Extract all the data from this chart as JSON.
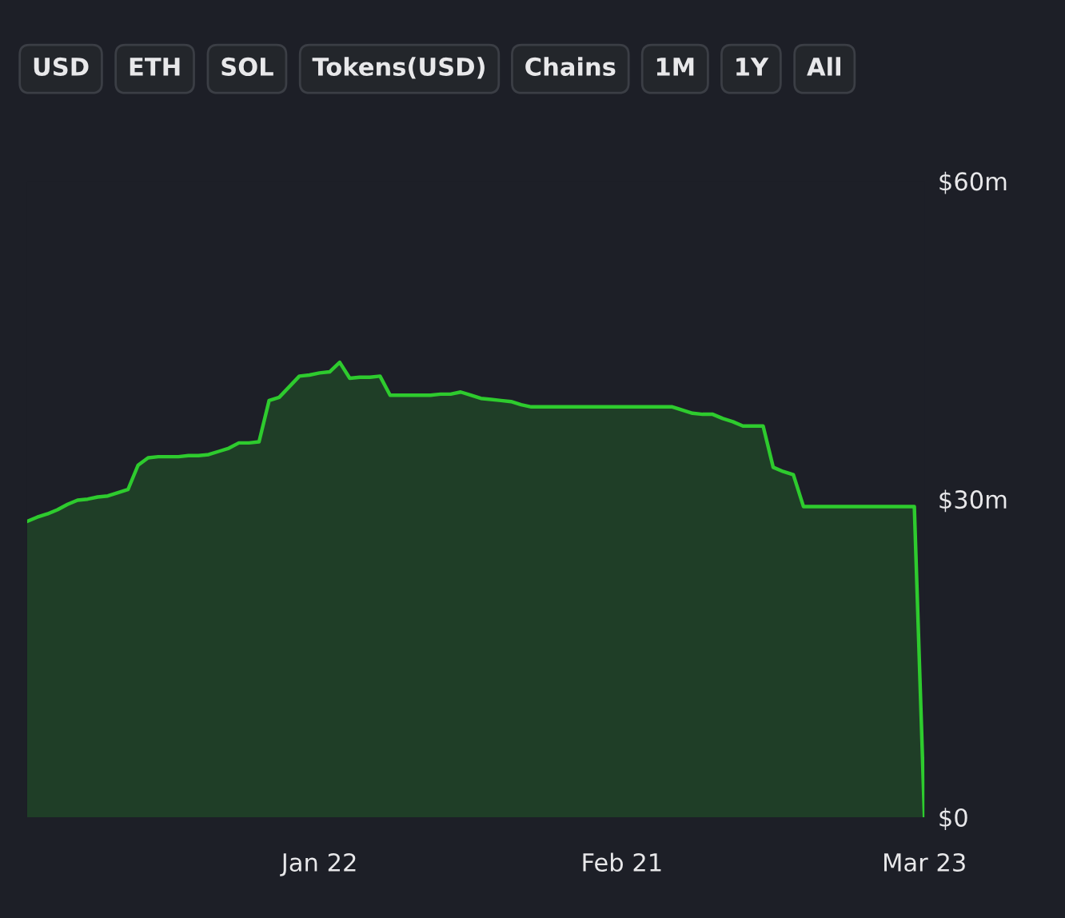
{
  "chart_data": {
    "type": "area",
    "categories": [
      null,
      null,
      null,
      null,
      null,
      null,
      null,
      null,
      null,
      null,
      null,
      null,
      null,
      null,
      null,
      null,
      null,
      null,
      null,
      null,
      null,
      null,
      null,
      null,
      null,
      null,
      null,
      null,
      null,
      "Jan 22",
      null,
      null,
      null,
      null,
      null,
      null,
      null,
      null,
      null,
      null,
      null,
      null,
      null,
      null,
      null,
      null,
      null,
      null,
      null,
      null,
      null,
      null,
      null,
      null,
      null,
      null,
      null,
      null,
      null,
      "Feb 21",
      null,
      null,
      null,
      null,
      null,
      null,
      null,
      null,
      null,
      null,
      null,
      null,
      null,
      null,
      null,
      null,
      null,
      null,
      null,
      null,
      null,
      null,
      null,
      null,
      null,
      null,
      null,
      null,
      null,
      "Mar 23"
    ],
    "series": [
      {
        "color": "#2ecb2e",
        "values": [
          27.9,
          28.3,
          28.6,
          29,
          29.5,
          29.9,
          30,
          30.2,
          30.3,
          30.6,
          30.9,
          33.2,
          33.9,
          34,
          34,
          34,
          34.1,
          34.1,
          34.2,
          34.5,
          34.8,
          35.3,
          35.3,
          35.4,
          39.3,
          39.6,
          40.6,
          41.6,
          41.7,
          41.9,
          42,
          42.9,
          41.4,
          41.5,
          41.5,
          41.6,
          39.8,
          39.8,
          39.8,
          39.8,
          39.8,
          39.9,
          39.9,
          40.1,
          39.8,
          39.5,
          39.4,
          39.3,
          39.2,
          38.9,
          38.7,
          38.7,
          38.7,
          38.7,
          38.7,
          38.7,
          38.7,
          38.7,
          38.7,
          38.7,
          38.7,
          38.7,
          38.7,
          38.7,
          38.7,
          38.4,
          38.1,
          38,
          38,
          37.6,
          37.3,
          36.9,
          36.9,
          36.9,
          33,
          32.6,
          32.3,
          29.3,
          29.3,
          29.3,
          29.3,
          29.3,
          29.3,
          29.3,
          29.3,
          29.3,
          29.3,
          29.3,
          29.3,
          0
        ]
      }
    ],
    "ylim": [
      0,
      60
    ],
    "yticks": [
      {
        "value": 0,
        "label": "$0"
      },
      {
        "value": 30,
        "label": "$30m"
      },
      {
        "value": 60,
        "label": "$60m"
      }
    ],
    "grid": false,
    "annotations": [
      "USD",
      "ETH",
      "SOL",
      "Tokens(USD)",
      "Chains",
      "1M",
      "1Y",
      "All"
    ]
  }
}
